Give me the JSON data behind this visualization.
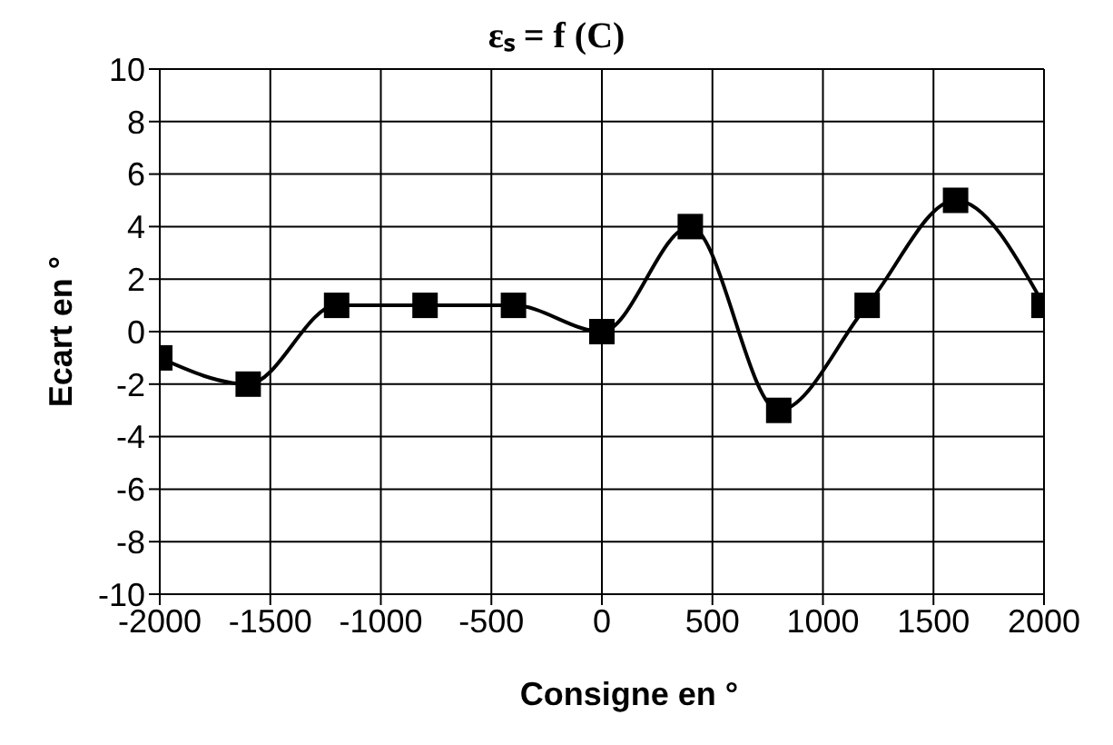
{
  "chart_data": {
    "type": "line",
    "title": "εₛ = f (C)",
    "xlabel": "Consigne en °",
    "ylabel": "Ecart en °",
    "x": [
      -2000,
      -1600,
      -1200,
      -800,
      -400,
      0,
      400,
      800,
      1200,
      1600,
      2000
    ],
    "series": [
      {
        "color": "#000000",
        "values": [
          -1,
          -2,
          1,
          1,
          1,
          0,
          4,
          -3,
          1,
          5,
          1
        ]
      }
    ],
    "xlim": [
      -2000,
      2000
    ],
    "xticks": [
      -2000,
      -1500,
      -1000,
      -500,
      0,
      500,
      1000,
      1500,
      2000
    ],
    "ylim": [
      -10,
      10
    ],
    "yticks": [
      -10,
      -8,
      -6,
      -4,
      -2,
      0,
      2,
      4,
      6,
      8,
      10
    ],
    "grid": true,
    "marker": "square",
    "line_style": "solid"
  }
}
